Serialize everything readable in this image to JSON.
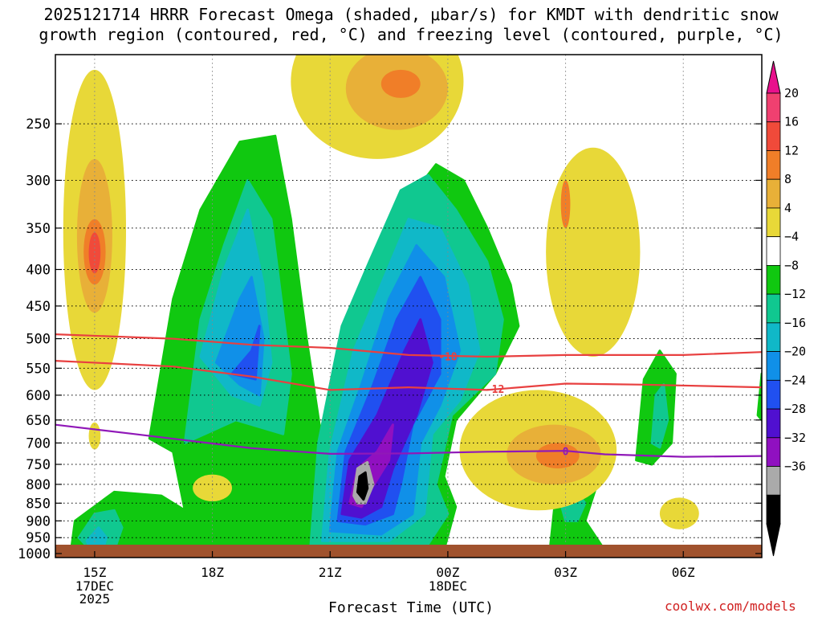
{
  "title": {
    "line1": "2025121714 HRRR Forecast Omega (shaded, μbar/s) for KMDT with dendritic snow",
    "line2": "growth region (contoured, red, °C) and freezing level (contoured, purple, °C)"
  },
  "credit": "coolwx.com/models",
  "chart_data": {
    "type": "heatmap",
    "xlabel": "Forecast Time (UTC)",
    "ylabel": "",
    "x_ticks": [
      {
        "hour": 15,
        "label": "15Z",
        "sub1": "17DEC",
        "sub2": "2025"
      },
      {
        "hour": 18,
        "label": "18Z",
        "sub1": "",
        "sub2": ""
      },
      {
        "hour": 21,
        "label": "21Z",
        "sub1": "",
        "sub2": ""
      },
      {
        "hour": 24,
        "label": "00Z",
        "sub1": "18DEC",
        "sub2": ""
      },
      {
        "hour": 27,
        "label": "03Z",
        "sub1": "",
        "sub2": ""
      },
      {
        "hour": 30,
        "label": "06Z",
        "sub1": "",
        "sub2": ""
      }
    ],
    "xlim_hours": [
      14.0,
      32.0
    ],
    "y_ticks": [
      250,
      300,
      350,
      400,
      450,
      500,
      550,
      600,
      650,
      700,
      750,
      800,
      850,
      900,
      950,
      1000
    ],
    "ylim_hpa": [
      1013,
      200
    ],
    "y_scale": "log-pressure",
    "grid": "dotted",
    "colorbar": {
      "labels": [
        "20",
        "16",
        "12",
        "8",
        "4",
        "−4",
        "−8",
        "−12",
        "−16",
        "−20",
        "−24",
        "−28",
        "−32",
        "−36"
      ],
      "colors": [
        "#f04070",
        "#f04a3a",
        "#f07e28",
        "#e8b038",
        "#e8d838",
        "#ffffff",
        "#10c810",
        "#10c890",
        "#10b8c8",
        "#1090e8",
        "#2050f0",
        "#5010d0",
        "#9010c0",
        "#aaaaaa",
        "#000000"
      ],
      "top_arrow_color": "#e8108c",
      "bottom_arrow_color": "#000000"
    },
    "contours": [
      {
        "name": "-18",
        "color": "#e84040",
        "points": [
          [
            14.0,
            493
          ],
          [
            17.0,
            500
          ],
          [
            19.0,
            510
          ],
          [
            21.0,
            515
          ],
          [
            23.0,
            527
          ],
          [
            25.0,
            530
          ],
          [
            27.0,
            527
          ],
          [
            30.0,
            527
          ],
          [
            32.0,
            522
          ]
        ]
      },
      {
        "name": "-12",
        "color": "#e84040",
        "points": [
          [
            14.0,
            537
          ],
          [
            17.0,
            547
          ],
          [
            19.0,
            565
          ],
          [
            21.0,
            590
          ],
          [
            23.0,
            585
          ],
          [
            25.0,
            590
          ],
          [
            27.0,
            578
          ],
          [
            29.0,
            580
          ],
          [
            32.0,
            585
          ]
        ]
      },
      {
        "name": "0",
        "color": "#9018b8",
        "points": [
          [
            14.0,
            660
          ],
          [
            16.0,
            680
          ],
          [
            19.0,
            712
          ],
          [
            21.0,
            725
          ],
          [
            23.0,
            724
          ],
          [
            25.0,
            720
          ],
          [
            27.0,
            718
          ],
          [
            28.0,
            726
          ],
          [
            30.0,
            732
          ],
          [
            32.0,
            730
          ]
        ]
      }
    ],
    "omega_regions": [
      {
        "level": "4 to 8",
        "color": "#e8d838",
        "cx": 15.0,
        "cy": 400,
        "rx": 0.8,
        "ry_hpa": 190
      },
      {
        "level": "8 to 12",
        "color": "#e8b038",
        "cx": 15.0,
        "cy": 370,
        "rx": 0.45,
        "ry_hpa": 90
      },
      {
        "level": "12 to 16",
        "color": "#f07e28",
        "cx": 15.0,
        "cy": 380,
        "rx": 0.28,
        "ry_hpa": 40
      },
      {
        "level": "4 to 8",
        "color": "#e8d838",
        "cx": 22.2,
        "cy": 225,
        "rx": 2.2,
        "ry_hpa": 55
      },
      {
        "level": "8 to 12",
        "color": "#e8b038",
        "cx": 22.7,
        "cy": 225,
        "rx": 1.3,
        "ry_hpa": 30
      },
      {
        "level": "4 to 8",
        "color": "#e8d838",
        "cx": 26.3,
        "cy": 730,
        "rx": 2.0,
        "ry_hpa": 140
      },
      {
        "level": "8 to 12",
        "color": "#e8b038",
        "cx": 26.7,
        "cy": 730,
        "rx": 1.2,
        "ry_hpa": 70
      },
      {
        "level": "4 to 8",
        "color": "#e8d838",
        "cx": 27.7,
        "cy": 400,
        "rx": 1.2,
        "ry_hpa": 130
      },
      {
        "level": "4 to 8",
        "color": "#e8d838",
        "cx": 29.9,
        "cy": 880,
        "rx": 0.5,
        "ry_hpa": 45
      },
      {
        "level": "4 to 8",
        "color": "#e8d838",
        "cx": 18.0,
        "cy": 810,
        "rx": 0.5,
        "ry_hpa": 35
      }
    ]
  }
}
